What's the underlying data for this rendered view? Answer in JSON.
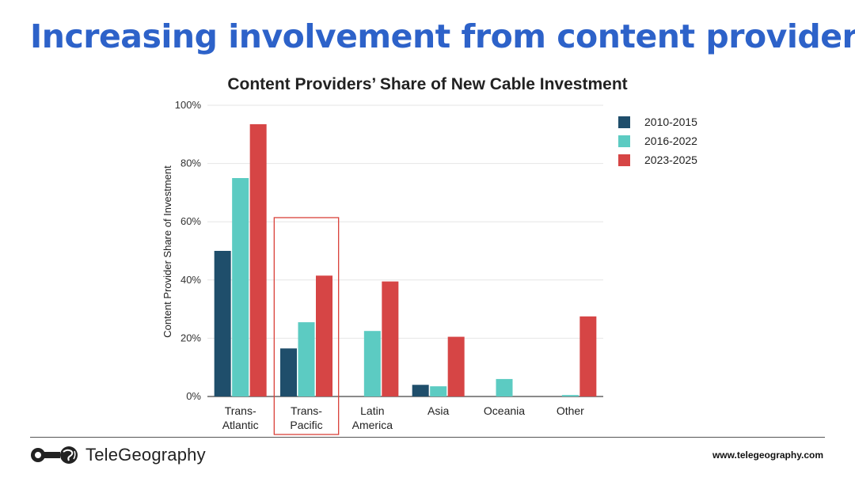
{
  "slide_title": "Increasing involvement from content providers",
  "chart_data": {
    "type": "bar",
    "title": "Content Providers’ Share of New Cable Investment",
    "ylabel": "Content Provider Share of Investment",
    "xlabel": "",
    "ylim": [
      0,
      100
    ],
    "yticks": [
      "0%",
      "20%",
      "40%",
      "60%",
      "80%",
      "100%"
    ],
    "ytick_values": [
      0,
      20,
      40,
      60,
      80,
      100
    ],
    "categories": [
      [
        "Trans-",
        "Atlantic"
      ],
      [
        "Trans-",
        "Pacific"
      ],
      [
        "Latin",
        "America"
      ],
      [
        "Asia"
      ],
      [
        "Oceania"
      ],
      [
        "Other"
      ]
    ],
    "series": [
      {
        "name": "2010-2015",
        "color": "#1f4e6b",
        "values": [
          50,
          16.5,
          0,
          4,
          0,
          0
        ]
      },
      {
        "name": "2016-2022",
        "color": "#5ccbc2",
        "values": [
          75,
          25.5,
          22.5,
          3.5,
          6,
          0.5
        ]
      },
      {
        "name": "2023-2025",
        "color": "#d64545",
        "values": [
          93.5,
          41.5,
          39.5,
          20.5,
          0,
          27.5
        ]
      }
    ],
    "grid": true,
    "legend_position": "top-right",
    "highlight_category": 1,
    "highlight_color": "#d9413a"
  },
  "footer": {
    "logo_text": "TeleGeography",
    "url": "www.telegeography.com"
  }
}
